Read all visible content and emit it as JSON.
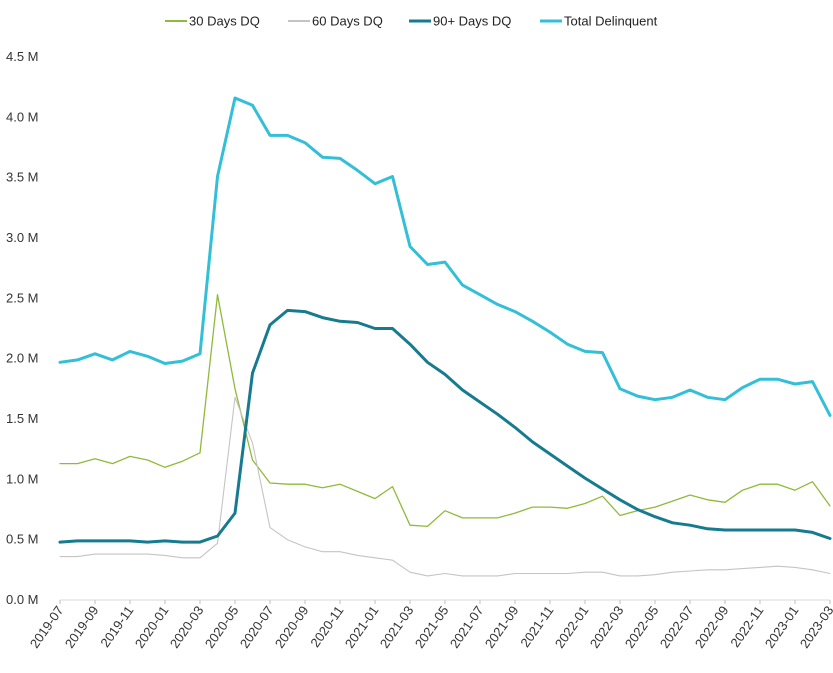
{
  "chart_data": {
    "type": "line",
    "title": "",
    "xlabel": "",
    "ylabel": "",
    "ylim": [
      0,
      4500000
    ],
    "yticks": [
      {
        "value": 0,
        "label": "0.0 M"
      },
      {
        "value": 500000,
        "label": "0.5 M"
      },
      {
        "value": 1000000,
        "label": "1.0 M"
      },
      {
        "value": 1500000,
        "label": "1.5 M"
      },
      {
        "value": 2000000,
        "label": "2.0 M"
      },
      {
        "value": 2500000,
        "label": "2.5 M"
      },
      {
        "value": 3000000,
        "label": "3.0 M"
      },
      {
        "value": 3500000,
        "label": "3.5 M"
      },
      {
        "value": 4000000,
        "label": "4.0 M"
      },
      {
        "value": 4500000,
        "label": "4.5 M"
      }
    ],
    "legend_position": "top",
    "grid": false,
    "x": [
      "2019-07",
      "2019-08",
      "2019-09",
      "2019-10",
      "2019-11",
      "2019-12",
      "2020-01",
      "2020-02",
      "2020-03",
      "2020-04",
      "2020-05",
      "2020-06",
      "2020-07",
      "2020-08",
      "2020-09",
      "2020-10",
      "2020-11",
      "2020-12",
      "2021-01",
      "2021-02",
      "2021-03",
      "2021-04",
      "2021-05",
      "2021-06",
      "2021-07",
      "2021-08",
      "2021-09",
      "2021-10",
      "2021-11",
      "2021-12",
      "2022-01",
      "2022-02",
      "2022-03",
      "2022-04",
      "2022-05",
      "2022-06",
      "2022-07",
      "2022-08",
      "2022-09",
      "2022-10",
      "2022-11",
      "2022-12",
      "2023-01",
      "2023-02",
      "2023-03"
    ],
    "xtick_labels": [
      "2019-07",
      "2019-09",
      "2019-11",
      "2020-01",
      "2020-03",
      "2020-05",
      "2020-07",
      "2020-09",
      "2020-11",
      "2021-01",
      "2021-03",
      "2021-05",
      "2021-07",
      "2021-09",
      "2021-11",
      "2022-01",
      "2022-03",
      "2022-05",
      "2022-07",
      "2022-09",
      "2022-11",
      "2023-01",
      "2023-03"
    ],
    "series": [
      {
        "name": "30 Days DQ",
        "color": "#8fba3a",
        "width": 1.3,
        "values": [
          1130000,
          1130000,
          1170000,
          1130000,
          1190000,
          1160000,
          1100000,
          1150000,
          1220000,
          2530000,
          1750000,
          1160000,
          970000,
          960000,
          960000,
          930000,
          960000,
          900000,
          840000,
          940000,
          620000,
          610000,
          740000,
          680000,
          680000,
          680000,
          720000,
          770000,
          770000,
          760000,
          800000,
          860000,
          700000,
          740000,
          770000,
          820000,
          870000,
          830000,
          810000,
          910000,
          960000,
          960000,
          910000,
          980000,
          780000
        ]
      },
      {
        "name": "60 Days DQ",
        "color": "#c4c4c4",
        "width": 1.1,
        "values": [
          360000,
          360000,
          380000,
          380000,
          380000,
          380000,
          370000,
          350000,
          350000,
          470000,
          1680000,
          1300000,
          600000,
          500000,
          440000,
          400000,
          400000,
          370000,
          350000,
          330000,
          230000,
          200000,
          220000,
          200000,
          200000,
          200000,
          220000,
          220000,
          220000,
          220000,
          230000,
          230000,
          200000,
          200000,
          210000,
          230000,
          240000,
          250000,
          250000,
          260000,
          270000,
          280000,
          270000,
          250000,
          220000
        ]
      },
      {
        "name": "90+ Days DQ",
        "color": "#167b8f",
        "width": 3,
        "values": [
          480000,
          490000,
          490000,
          490000,
          490000,
          480000,
          490000,
          480000,
          480000,
          530000,
          720000,
          1880000,
          2280000,
          2400000,
          2390000,
          2340000,
          2310000,
          2300000,
          2250000,
          2250000,
          2120000,
          1970000,
          1870000,
          1740000,
          1640000,
          1540000,
          1430000,
          1310000,
          1210000,
          1110000,
          1010000,
          920000,
          830000,
          750000,
          690000,
          640000,
          620000,
          590000,
          580000,
          580000,
          580000,
          580000,
          580000,
          560000,
          510000
        ]
      },
      {
        "name": "Total Delinquent",
        "color": "#33bfd8",
        "width": 3,
        "values": [
          1970000,
          1990000,
          2040000,
          1990000,
          2060000,
          2020000,
          1960000,
          1980000,
          2040000,
          3510000,
          4160000,
          4100000,
          3850000,
          3850000,
          3790000,
          3670000,
          3660000,
          3560000,
          3450000,
          3510000,
          2930000,
          2780000,
          2800000,
          2610000,
          2530000,
          2450000,
          2390000,
          2310000,
          2220000,
          2120000,
          2060000,
          2050000,
          1750000,
          1690000,
          1660000,
          1680000,
          1740000,
          1680000,
          1660000,
          1760000,
          1830000,
          1830000,
          1790000,
          1810000,
          1530000
        ]
      }
    ]
  }
}
